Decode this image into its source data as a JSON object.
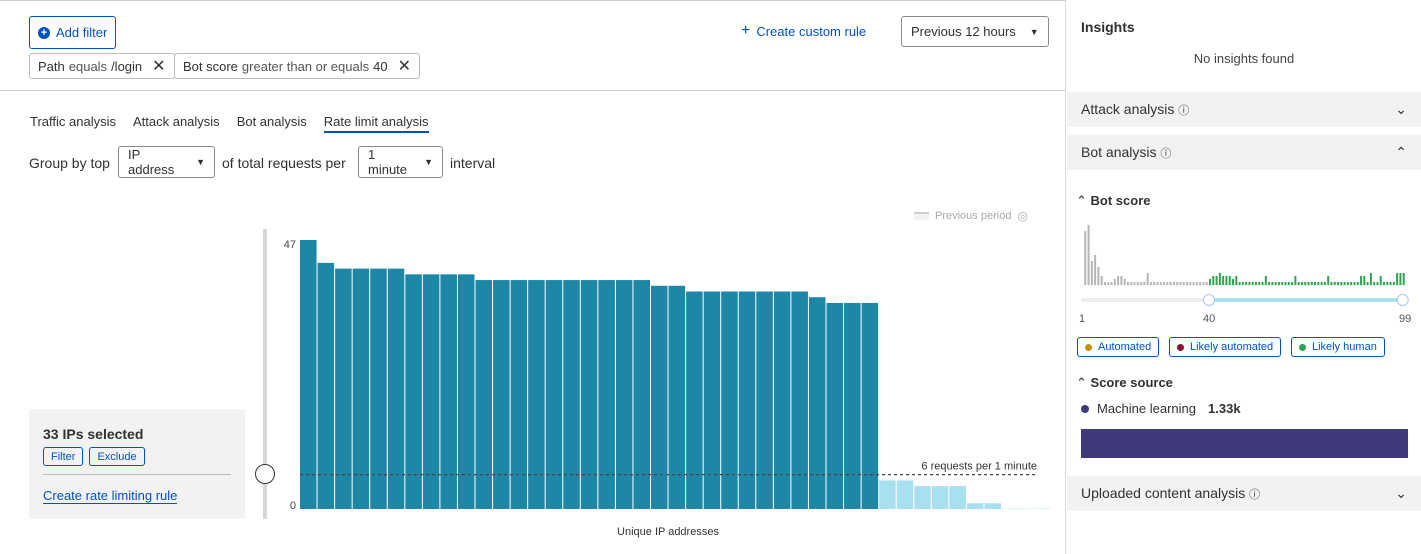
{
  "toolbar": {
    "add_filter": "Add filter",
    "create_rule": "Create custom rule",
    "time_range": "Previous 12 hours"
  },
  "filters": [
    {
      "field": "Path",
      "op": "equals",
      "value": "/login"
    },
    {
      "field": "Bot score",
      "op": "greater than or equals",
      "value": "40"
    }
  ],
  "tabs": [
    "Traffic analysis",
    "Attack analysis",
    "Bot analysis",
    "Rate limit analysis"
  ],
  "active_tab": "Rate limit analysis",
  "group_by": {
    "prefix": "Group by top",
    "field": "IP address",
    "middle": "of total requests per",
    "interval": "1 minute",
    "suffix": "interval"
  },
  "legend": {
    "previous_period": "Previous period"
  },
  "selection": {
    "title": "33 IPs selected",
    "filter": "Filter",
    "exclude": "Exclude",
    "create_rule": "Create rate limiting rule"
  },
  "chart_data": {
    "type": "bar",
    "xlabel": "Unique IP addresses",
    "ylabel": "",
    "ylim": [
      0,
      47
    ],
    "y_ticks": [
      "0",
      "47"
    ],
    "values": [
      47,
      43,
      42,
      42,
      42,
      42,
      41,
      41,
      41,
      41,
      40,
      40,
      40,
      40,
      40,
      40,
      40,
      40,
      40,
      40,
      39,
      39,
      38,
      38,
      38,
      38,
      38,
      38,
      38,
      37,
      36,
      36,
      36,
      5,
      5,
      4,
      4,
      4,
      1,
      1,
      0,
      0,
      0,
      0,
      0,
      0,
      0,
      0,
      0
    ],
    "threshold": 6,
    "threshold_label": "6 requests per 1 minute",
    "colors": {
      "above": "#1e87a5",
      "below": "#a8e0ef"
    }
  },
  "insights": {
    "title": "Insights",
    "empty": "No insights found",
    "attack": "Attack analysis",
    "bot": "Bot analysis",
    "uploaded": "Uploaded content analysis",
    "bot_score": {
      "title": "Bot score",
      "min": "1",
      "sel": "40",
      "max": "99",
      "range": [
        40,
        99
      ],
      "legend": [
        {
          "label": "Automated",
          "color": "#c8900f"
        },
        {
          "label": "Likely automated",
          "color": "#8b0f2e"
        },
        {
          "label": "Likely human",
          "color": "#2ea44f"
        }
      ]
    },
    "score_source": {
      "title": "Score source",
      "label": "Machine learning",
      "value": "1.33k",
      "color": "#3f3a7a"
    }
  }
}
